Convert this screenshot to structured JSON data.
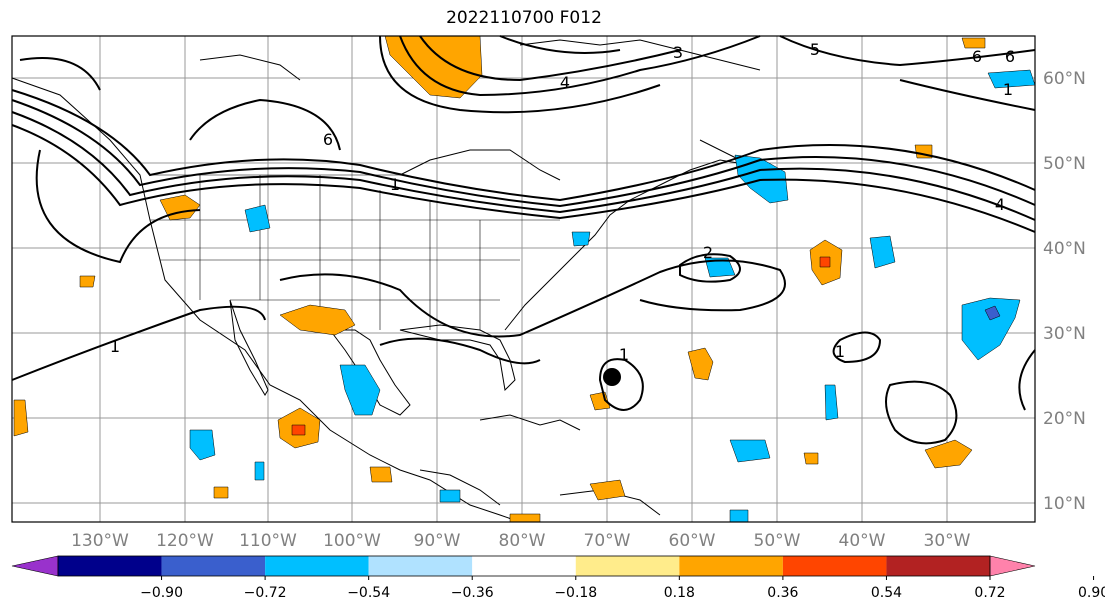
{
  "title": "2022110700 F012",
  "lon_labels": [
    "130°W",
    "120°W",
    "110°W",
    "100°W",
    "90°W",
    "80°W",
    "70°W",
    "60°W",
    "50°W",
    "40°W",
    "30°W"
  ],
  "lat_labels": [
    "60°N",
    "50°N",
    "40°N",
    "30°N",
    "20°N",
    "10°N"
  ],
  "contour_labels": [
    "1",
    "1",
    "2",
    "3",
    "4",
    "4",
    "5",
    "6",
    "6",
    "6",
    "1",
    "1",
    "1"
  ],
  "colorbar": {
    "ticks": [
      "−0.90",
      "−0.72",
      "−0.54",
      "−0.36",
      "−0.18",
      "0.18",
      "0.36",
      "0.54",
      "0.72",
      "0.90"
    ],
    "colors": [
      "#9932cc",
      "#00008b",
      "#3a5fcd",
      "#00bfff",
      "#b0e2ff",
      "#ffffff",
      "#ffec8b",
      "#ffa500",
      "#ff4500",
      "#b22222",
      "#ff82ab"
    ]
  },
  "marker": "storm-center-dot"
}
